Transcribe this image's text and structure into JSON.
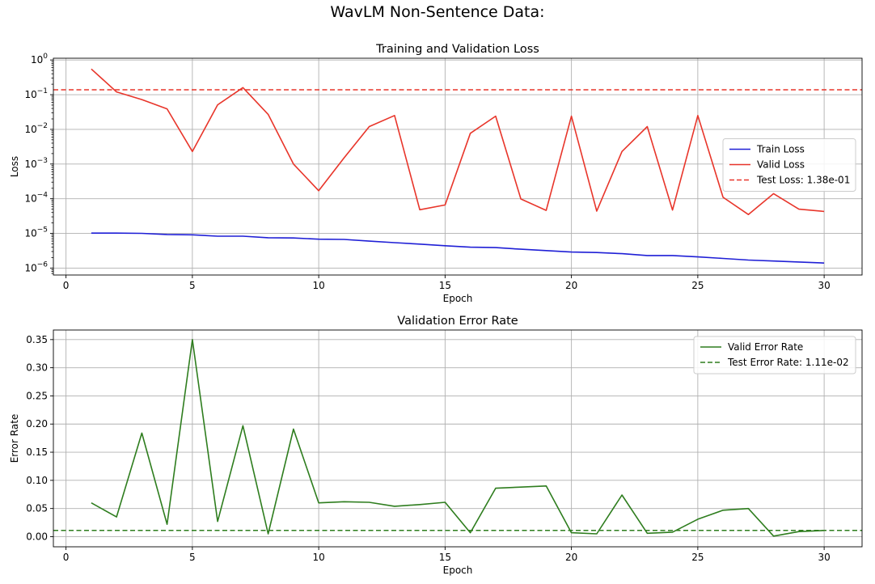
{
  "figure_title": "WavLM Non-Sentence Data:",
  "chart_data": [
    {
      "type": "line",
      "title": "Training and Validation Loss",
      "xlabel": "Epoch",
      "ylabel": "Loss",
      "yscale": "log",
      "xlim": [
        -0.5,
        31.5
      ],
      "ylim_exp": [
        -6.2,
        0.05
      ],
      "x_ticks": [
        0,
        5,
        10,
        15,
        20,
        25,
        30
      ],
      "y_tick_exponents": [
        -6,
        -5,
        -4,
        -3,
        -2,
        -1,
        0
      ],
      "grid": true,
      "legend_position": "center-right",
      "x": [
        1,
        2,
        3,
        4,
        5,
        6,
        7,
        8,
        9,
        10,
        11,
        12,
        13,
        14,
        15,
        16,
        17,
        18,
        19,
        20,
        21,
        22,
        23,
        24,
        25,
        26,
        27,
        28,
        29,
        30
      ],
      "series": [
        {
          "name": "Train Loss",
          "color": "#1f1fd6",
          "style": "solid",
          "values": [
            1.02e-05,
            1.02e-05,
            1e-05,
            9.3e-06,
            9.1e-06,
            8.3e-06,
            8.3e-06,
            7.5e-06,
            7.4e-06,
            6.8e-06,
            6.7e-06,
            6e-06,
            5.4e-06,
            4.9e-06,
            4.4e-06,
            4e-06,
            3.9e-06,
            3.5e-06,
            3.2e-06,
            2.9e-06,
            2.8e-06,
            2.6e-06,
            2.3e-06,
            2.3e-06,
            2.1e-06,
            1.9e-06,
            1.7e-06,
            1.6e-06,
            1.5e-06,
            1.4e-06
          ]
        },
        {
          "name": "Valid Loss",
          "color": "#e8352a",
          "style": "solid",
          "values": [
            0.55,
            0.12,
            0.072,
            0.039,
            0.0023,
            0.051,
            0.16,
            0.027,
            0.001,
            0.00017,
            0.0015,
            0.012,
            0.025,
            4.8e-05,
            6.6e-05,
            0.0077,
            0.024,
            9.8e-05,
            4.6e-05,
            0.024,
            4.4e-05,
            0.0023,
            0.012,
            4.7e-05,
            0.025,
            0.00011,
            3.5e-05,
            0.00014,
            5e-05,
            4.3e-05
          ]
        },
        {
          "name": "Test Loss: 1.38e-01",
          "color": "#e8352a",
          "style": "dashed",
          "constant": 0.138
        }
      ]
    },
    {
      "type": "line",
      "title": "Validation Error Rate",
      "xlabel": "Epoch",
      "ylabel": "Error Rate",
      "xlim": [
        -0.5,
        31.5
      ],
      "ylim": [
        -0.018,
        0.367
      ],
      "x_ticks": [
        0,
        5,
        10,
        15,
        20,
        25,
        30
      ],
      "y_ticks": [
        0.0,
        0.05,
        0.1,
        0.15,
        0.2,
        0.25,
        0.3,
        0.35
      ],
      "y_tick_labels": [
        "0.00",
        "0.05",
        "0.10",
        "0.15",
        "0.20",
        "0.25",
        "0.30",
        "0.35"
      ],
      "grid": true,
      "legend_position": "upper-right",
      "x": [
        1,
        2,
        3,
        4,
        5,
        6,
        7,
        8,
        9,
        10,
        11,
        12,
        13,
        14,
        15,
        16,
        17,
        18,
        19,
        20,
        21,
        22,
        23,
        24,
        25,
        26,
        27,
        28,
        29,
        30
      ],
      "series": [
        {
          "name": "Valid Error Rate",
          "color": "#2e7d1e",
          "style": "solid",
          "values": [
            0.06,
            0.035,
            0.184,
            0.022,
            0.35,
            0.027,
            0.197,
            0.005,
            0.191,
            0.06,
            0.062,
            0.061,
            0.054,
            0.057,
            0.061,
            0.007,
            0.086,
            0.088,
            0.09,
            0.007,
            0.005,
            0.074,
            0.006,
            0.008,
            0.031,
            0.047,
            0.05,
            0.001,
            0.009,
            0.011
          ]
        },
        {
          "name": "Test Error Rate: 1.11e-02",
          "color": "#2e7d1e",
          "style": "dashed",
          "constant": 0.0111
        }
      ]
    }
  ]
}
